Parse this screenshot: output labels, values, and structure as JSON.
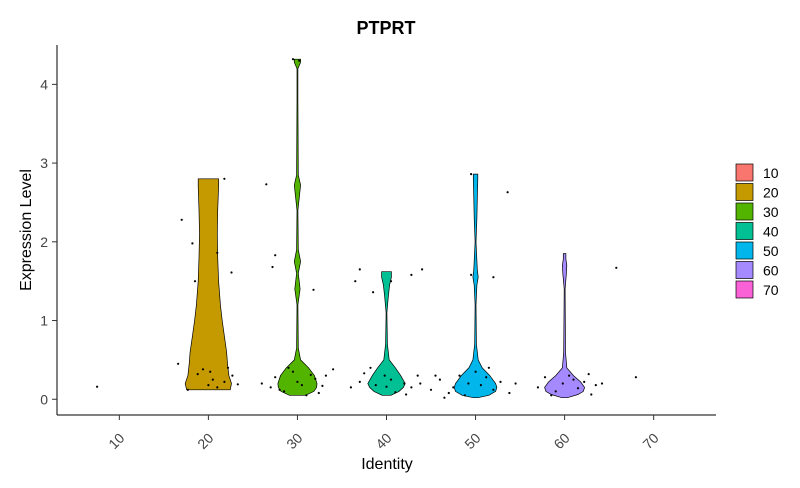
{
  "chart_data": {
    "type": "violin",
    "title": "PTPRT",
    "xlabel": "Identity",
    "ylabel": "Expression Level",
    "categories": [
      "10",
      "20",
      "30",
      "40",
      "50",
      "60",
      "70"
    ],
    "ylim": [
      -0.2,
      4.5
    ],
    "yticks": [
      0,
      1,
      2,
      3,
      4
    ],
    "grid": false,
    "legend_position": "right",
    "legend": [
      {
        "label": "10",
        "color": "#F8766D"
      },
      {
        "label": "20",
        "color": "#C49A00"
      },
      {
        "label": "30",
        "color": "#53B400"
      },
      {
        "label": "40",
        "color": "#00C094"
      },
      {
        "label": "50",
        "color": "#00B6EB"
      },
      {
        "label": "60",
        "color": "#A58AFF"
      },
      {
        "label": "70",
        "color": "#FB61D7"
      }
    ],
    "violins": [
      {
        "category": "20",
        "color": "#C49A00",
        "profile": [
          [
            0.12,
            0.49
          ],
          [
            0.2,
            0.52
          ],
          [
            0.3,
            0.46
          ],
          [
            0.45,
            0.43
          ],
          [
            0.6,
            0.41
          ],
          [
            0.8,
            0.36
          ],
          [
            1.0,
            0.31
          ],
          [
            1.2,
            0.27
          ],
          [
            1.5,
            0.23
          ],
          [
            1.8,
            0.21
          ],
          [
            2.1,
            0.2
          ],
          [
            2.4,
            0.21
          ],
          [
            2.7,
            0.23
          ],
          [
            2.8,
            0.23
          ]
        ],
        "points": [
          [
            -0.34,
            0.45
          ],
          [
            -0.23,
            0.12
          ],
          [
            -0.12,
            0.32
          ],
          [
            -0.06,
            0.38
          ],
          [
            0.02,
            0.35
          ],
          [
            0.1,
            0.15
          ],
          [
            0.18,
            0.22
          ],
          [
            0.27,
            0.3
          ],
          [
            0.33,
            0.19
          ],
          [
            0.22,
            0.4
          ],
          [
            0.0,
            0.18
          ],
          [
            -0.3,
            2.28
          ],
          [
            -0.18,
            1.98
          ],
          [
            -0.15,
            1.5
          ],
          [
            0.18,
            2.8
          ],
          [
            0.26,
            1.61
          ],
          [
            0.1,
            1.86
          ],
          [
            0.05,
            0.25
          ]
        ]
      },
      {
        "category": "30",
        "color": "#53B400",
        "profile": [
          [
            0.05,
            0.18
          ],
          [
            0.1,
            0.37
          ],
          [
            0.15,
            0.43
          ],
          [
            0.2,
            0.44
          ],
          [
            0.3,
            0.38
          ],
          [
            0.4,
            0.25
          ],
          [
            0.5,
            0.07
          ],
          [
            0.65,
            0.02
          ],
          [
            1.2,
            0.01
          ],
          [
            1.4,
            0.06
          ],
          [
            1.6,
            0.02
          ],
          [
            1.75,
            0.07
          ],
          [
            1.9,
            0.02
          ],
          [
            2.4,
            0.01
          ],
          [
            2.72,
            0.07
          ],
          [
            2.85,
            0.02
          ],
          [
            3.8,
            0.01
          ],
          [
            4.2,
            0.01
          ],
          [
            4.28,
            0.07
          ],
          [
            4.32,
            0.07
          ]
        ],
        "points": [
          [
            -0.4,
            0.2
          ],
          [
            -0.3,
            0.15
          ],
          [
            -0.25,
            0.28
          ],
          [
            -0.15,
            0.1
          ],
          [
            -0.05,
            0.35
          ],
          [
            0.0,
            0.22
          ],
          [
            0.05,
            0.18
          ],
          [
            0.1,
            0.05
          ],
          [
            0.2,
            0.26
          ],
          [
            0.28,
            0.17
          ],
          [
            0.32,
            0.3
          ],
          [
            0.4,
            0.38
          ],
          [
            -0.2,
            0.12
          ],
          [
            0.15,
            0.31
          ],
          [
            -0.35,
            2.73
          ],
          [
            -0.25,
            1.83
          ],
          [
            -0.28,
            1.68
          ],
          [
            0.18,
            1.39
          ],
          [
            -0.05,
            4.32
          ],
          [
            0.02,
            4.3
          ],
          [
            -0.1,
            0.4
          ],
          [
            0.24,
            0.08
          ]
        ]
      },
      {
        "category": "40",
        "color": "#00C094",
        "profile": [
          [
            0.05,
            0.1
          ],
          [
            0.1,
            0.28
          ],
          [
            0.15,
            0.38
          ],
          [
            0.2,
            0.42
          ],
          [
            0.3,
            0.32
          ],
          [
            0.4,
            0.2
          ],
          [
            0.5,
            0.06
          ],
          [
            0.7,
            0.02
          ],
          [
            1.1,
            0.01
          ],
          [
            1.3,
            0.04
          ],
          [
            1.45,
            0.07
          ],
          [
            1.55,
            0.11
          ],
          [
            1.62,
            0.11
          ]
        ],
        "points": [
          [
            -0.4,
            0.15
          ],
          [
            -0.3,
            0.22
          ],
          [
            -0.25,
            0.33
          ],
          [
            -0.12,
            0.18
          ],
          [
            -0.02,
            0.3
          ],
          [
            0.05,
            0.25
          ],
          [
            0.1,
            0.09
          ],
          [
            0.2,
            0.2
          ],
          [
            0.28,
            0.15
          ],
          [
            0.35,
            0.3
          ],
          [
            0.22,
            0.06
          ],
          [
            -0.35,
            1.5
          ],
          [
            -0.3,
            1.65
          ],
          [
            -0.15,
            1.36
          ],
          [
            0.05,
            1.5
          ],
          [
            0.28,
            1.58
          ],
          [
            0.38,
            0.2
          ],
          [
            -0.18,
            0.4
          ],
          [
            0.0,
            0.16
          ]
        ]
      },
      {
        "category": "50",
        "color": "#00B6EB",
        "profile": [
          [
            0.02,
            0.05
          ],
          [
            0.05,
            0.3
          ],
          [
            0.1,
            0.45
          ],
          [
            0.15,
            0.48
          ],
          [
            0.2,
            0.45
          ],
          [
            0.3,
            0.32
          ],
          [
            0.4,
            0.15
          ],
          [
            0.5,
            0.06
          ],
          [
            0.7,
            0.02
          ],
          [
            1.2,
            0.01
          ],
          [
            1.45,
            0.03
          ],
          [
            1.55,
            0.06
          ],
          [
            1.65,
            0.04
          ],
          [
            2.0,
            0.01
          ],
          [
            2.3,
            0.03
          ],
          [
            2.55,
            0.04
          ],
          [
            2.8,
            0.05
          ],
          [
            2.86,
            0.05
          ]
        ],
        "points": [
          [
            -0.5,
            0.12
          ],
          [
            -0.4,
            0.25
          ],
          [
            -0.3,
            0.08
          ],
          [
            -0.25,
            0.15
          ],
          [
            -0.18,
            0.3
          ],
          [
            -0.08,
            0.2
          ],
          [
            0.0,
            0.35
          ],
          [
            0.06,
            0.18
          ],
          [
            0.12,
            0.28
          ],
          [
            0.2,
            0.12
          ],
          [
            0.28,
            0.22
          ],
          [
            0.38,
            0.08
          ],
          [
            0.45,
            0.2
          ],
          [
            -0.35,
            0.02
          ],
          [
            -0.12,
            0.05
          ],
          [
            -0.6,
            1.65
          ],
          [
            -0.05,
            1.58
          ],
          [
            0.2,
            1.55
          ],
          [
            0.36,
            2.63
          ],
          [
            -0.05,
            2.86
          ],
          [
            0.15,
            0.4
          ],
          [
            -0.45,
            0.3
          ]
        ]
      },
      {
        "category": "60",
        "color": "#A58AFF",
        "profile": [
          [
            0.02,
            0.06
          ],
          [
            0.06,
            0.3
          ],
          [
            0.1,
            0.42
          ],
          [
            0.15,
            0.45
          ],
          [
            0.22,
            0.36
          ],
          [
            0.3,
            0.2
          ],
          [
            0.4,
            0.05
          ],
          [
            0.6,
            0.02
          ],
          [
            1.4,
            0.01
          ],
          [
            1.6,
            0.04
          ],
          [
            1.7,
            0.05
          ],
          [
            1.78,
            0.03
          ],
          [
            1.85,
            0.03
          ]
        ],
        "points": [
          [
            -0.3,
            0.15
          ],
          [
            -0.22,
            0.28
          ],
          [
            -0.1,
            0.1
          ],
          [
            -0.02,
            0.2
          ],
          [
            0.05,
            0.3
          ],
          [
            0.15,
            0.14
          ],
          [
            0.22,
            0.22
          ],
          [
            0.3,
            0.06
          ],
          [
            0.35,
            0.18
          ],
          [
            -0.15,
            0.05
          ],
          [
            0.1,
            0.25
          ],
          [
            0.42,
            0.2
          ],
          [
            0.27,
            0.32
          ],
          [
            0.58,
            1.67
          ],
          [
            0.8,
            0.28
          ]
        ]
      }
    ],
    "extra_points": [
      {
        "category": "10",
        "offset": -0.25,
        "y": 0.16
      }
    ]
  }
}
